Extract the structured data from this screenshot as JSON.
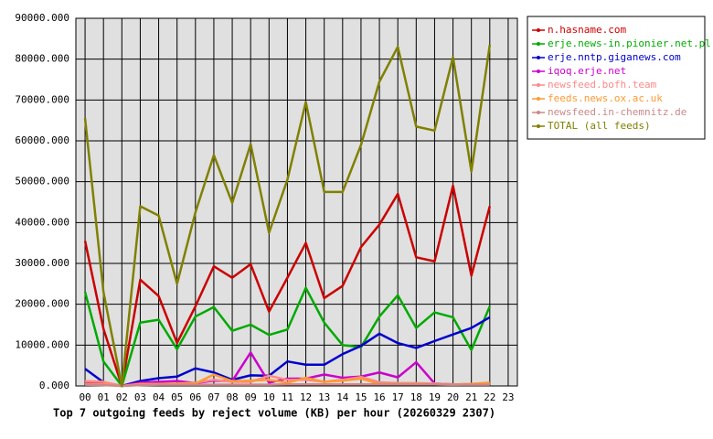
{
  "chart_data": {
    "type": "line",
    "title": "Top 7 outgoing feeds by reject volume (KB) per hour (20260329 2307)",
    "categories": [
      "00",
      "01",
      "02",
      "03",
      "04",
      "05",
      "06",
      "07",
      "08",
      "09",
      "10",
      "11",
      "12",
      "13",
      "14",
      "15",
      "16",
      "17",
      "18",
      "19",
      "20",
      "21",
      "22",
      "23"
    ],
    "ylim": [
      0,
      90000
    ],
    "yticks": [
      {
        "value": 0,
        "label": "0.000"
      },
      {
        "value": 10000,
        "label": "10000.000"
      },
      {
        "value": 20000,
        "label": "20000.000"
      },
      {
        "value": 30000,
        "label": "30000.000"
      },
      {
        "value": 40000,
        "label": "40000.000"
      },
      {
        "value": 50000,
        "label": "50000.000"
      },
      {
        "value": 60000,
        "label": "60000.000"
      },
      {
        "value": 70000,
        "label": "70000.000"
      },
      {
        "value": 80000,
        "label": "80000.000"
      },
      {
        "value": 90000,
        "label": "90000.000"
      }
    ],
    "grid": true,
    "legend": "right",
    "series": [
      {
        "name": "n.hasname.com",
        "color": "#cc0000",
        "values": [
          35500,
          14000,
          0,
          26000,
          22000,
          10500,
          19500,
          29300,
          26500,
          29800,
          18200,
          26500,
          35000,
          21500,
          24500,
          34000,
          39500,
          47000,
          31500,
          30500,
          49000,
          27000,
          44000,
          null
        ]
      },
      {
        "name": "erje.news-in.pionier.net.pl",
        "color": "#00aa00",
        "values": [
          23000,
          6000,
          0,
          15500,
          16200,
          9000,
          17000,
          19300,
          13500,
          15000,
          12500,
          13800,
          24000,
          15500,
          10000,
          9500,
          17000,
          22200,
          14200,
          18000,
          16800,
          8800,
          19500,
          null
        ]
      },
      {
        "name": "erje.nntp.giganews.com",
        "color": "#0000cc",
        "values": [
          4200,
          900,
          0,
          1200,
          1900,
          2300,
          4300,
          3300,
          1500,
          2600,
          2500,
          6000,
          5200,
          5200,
          7800,
          9800,
          12800,
          10500,
          9300,
          11000,
          12600,
          14200,
          16800,
          null
        ]
      },
      {
        "name": "iqoq.erje.net",
        "color": "#cc00cc",
        "values": [
          1000,
          700,
          0,
          800,
          1000,
          1200,
          700,
          1300,
          1200,
          8200,
          800,
          1800,
          1800,
          2800,
          2000,
          2300,
          3300,
          2100,
          5800,
          600,
          400,
          400,
          600,
          null
        ]
      },
      {
        "name": "newsfeed.bofh.team",
        "color": "#ff8888",
        "values": [
          1200,
          1000,
          0,
          500,
          500,
          600,
          800,
          1500,
          1000,
          1000,
          2500,
          1500,
          1500,
          1000,
          1500,
          2200,
          900,
          700,
          700,
          600,
          400,
          500,
          500,
          null
        ]
      },
      {
        "name": "feeds.news.ox.ac.uk",
        "color": "#ff9933",
        "values": [
          500,
          400,
          0,
          300,
          400,
          500,
          600,
          2800,
          1200,
          1300,
          1500,
          800,
          2000,
          1000,
          1300,
          1800,
          500,
          500,
          500,
          400,
          300,
          500,
          800,
          null
        ]
      },
      {
        "name": "newsfeed.in-chemnitz.de",
        "color": "#cc8888",
        "values": [
          300,
          200,
          0,
          200,
          300,
          300,
          300,
          300,
          300,
          300,
          300,
          400,
          400,
          400,
          400,
          400,
          400,
          400,
          400,
          400,
          300,
          300,
          300,
          null
        ]
      },
      {
        "name": "TOTAL (all feeds)",
        "color": "#808000",
        "values": [
          65500,
          23000,
          0,
          44000,
          41700,
          25000,
          42500,
          56500,
          44800,
          59200,
          37500,
          50500,
          69500,
          47500,
          47500,
          59000,
          74500,
          83000,
          63500,
          62500,
          80500,
          52500,
          83500,
          null
        ]
      }
    ]
  }
}
